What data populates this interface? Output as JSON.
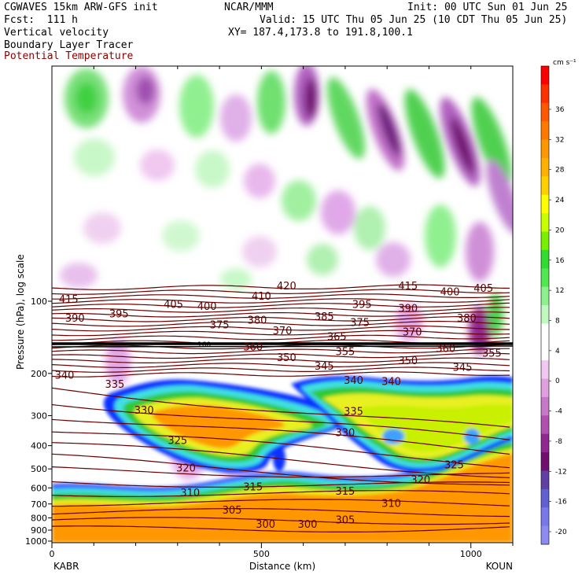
{
  "header": {
    "line1_left": "CGWAVES 15km ARW-GFS init",
    "line1_center": "NCAR/MMM",
    "line1_right": "Init: 00 UTC Sun 01 Jun 25",
    "line2_left": "Fcst:  111 h",
    "line2_right": "Valid: 15 UTC Thu 05 Jun 25 (10 CDT Thu 05 Jun 25)",
    "line3_left": "Vertical velocity",
    "line3_right": "XY= 187.4,173.8 to 191.8,100.1",
    "line4_left": "Boundary Layer Tracer",
    "line5_left": "Potential Temperature"
  },
  "chart_data": {
    "type": "heatmap",
    "title": "Vertical velocity",
    "overlays": [
      "Boundary Layer Tracer",
      "Potential Temperature"
    ],
    "xlabel": "Distance (km)",
    "ylabel": "Pressure (hPa), log scale",
    "x_ticks": [
      "0",
      "500",
      "1000"
    ],
    "x_range": [
      0,
      1100
    ],
    "x_endpoints": {
      "left": "KABR",
      "right": "KOUN"
    },
    "y_ticks": [
      "100",
      "200",
      "300",
      "400",
      "500",
      "600",
      "700",
      "800",
      "900",
      "1000"
    ],
    "y_scale": "log",
    "colorbar": {
      "unit": "cm s⁻¹",
      "labels": [
        "36",
        "32",
        "28",
        "24",
        "20",
        "16",
        "12",
        "8",
        "4",
        "0",
        "-4",
        "-8",
        "-12",
        "-16",
        "-20"
      ],
      "colors": [
        "#ff0000",
        "#ff3000",
        "#ff5800",
        "#ff7800",
        "#ff9800",
        "#ffb000",
        "#ffd000",
        "#ffff00",
        "#c8ff00",
        "#78f000",
        "#30dc30",
        "#50e850",
        "#8cf08c",
        "#c0f8c0",
        "#ffffff",
        "#ffffff",
        "#f0c8f0",
        "#e0a0e0",
        "#c878c8",
        "#b050b0",
        "#902890",
        "#701070",
        "#6040a0",
        "#6060d0",
        "#7878e8",
        "#8c8cf0"
      ]
    },
    "theta_labels": [
      {
        "value": "415",
        "x": 40,
        "p": 100
      },
      {
        "value": "390",
        "x": 55,
        "p": 120
      },
      {
        "value": "395",
        "x": 160,
        "p": 115
      },
      {
        "value": "405",
        "x": 290,
        "p": 105
      },
      {
        "value": "400",
        "x": 370,
        "p": 107
      },
      {
        "value": "375",
        "x": 400,
        "p": 128
      },
      {
        "value": "380",
        "x": 490,
        "p": 122
      },
      {
        "value": "410",
        "x": 500,
        "p": 97
      },
      {
        "value": "420",
        "x": 560,
        "p": 88
      },
      {
        "value": "370",
        "x": 550,
        "p": 135
      },
      {
        "value": "385",
        "x": 650,
        "p": 118
      },
      {
        "value": "395",
        "x": 740,
        "p": 105
      },
      {
        "value": "375",
        "x": 735,
        "p": 125
      },
      {
        "value": "365",
        "x": 680,
        "p": 143
      },
      {
        "value": "360",
        "x": 480,
        "p": 158
      },
      {
        "value": "355",
        "x": 700,
        "p": 165
      },
      {
        "value": "350",
        "x": 560,
        "p": 175
      },
      {
        "value": "345",
        "x": 650,
        "p": 190
      },
      {
        "value": "350",
        "x": 850,
        "p": 180
      },
      {
        "value": "415",
        "x": 850,
        "p": 88
      },
      {
        "value": "390",
        "x": 850,
        "p": 109
      },
      {
        "value": "370",
        "x": 860,
        "p": 137
      },
      {
        "value": "400",
        "x": 950,
        "p": 93
      },
      {
        "value": "405",
        "x": 1030,
        "p": 90
      },
      {
        "value": "380",
        "x": 990,
        "p": 120
      },
      {
        "value": "360",
        "x": 940,
        "p": 160
      },
      {
        "value": "355",
        "x": 1050,
        "p": 168
      },
      {
        "value": "345",
        "x": 980,
        "p": 192
      },
      {
        "value": "340",
        "x": 30,
        "p": 207
      },
      {
        "value": "340",
        "x": 720,
        "p": 218
      },
      {
        "value": "340",
        "x": 810,
        "p": 220
      },
      {
        "value": "335",
        "x": 150,
        "p": 226
      },
      {
        "value": "335",
        "x": 720,
        "p": 293
      },
      {
        "value": "330",
        "x": 220,
        "p": 290
      },
      {
        "value": "330",
        "x": 700,
        "p": 360
      },
      {
        "value": "325",
        "x": 300,
        "p": 388
      },
      {
        "value": "325",
        "x": 960,
        "p": 490
      },
      {
        "value": "320",
        "x": 320,
        "p": 505
      },
      {
        "value": "320",
        "x": 880,
        "p": 565
      },
      {
        "value": "315",
        "x": 480,
        "p": 605
      },
      {
        "value": "315",
        "x": 700,
        "p": 630
      },
      {
        "value": "310",
        "x": 330,
        "p": 640
      },
      {
        "value": "310",
        "x": 810,
        "p": 710
      },
      {
        "value": "305",
        "x": 430,
        "p": 755
      },
      {
        "value": "305",
        "x": 700,
        "p": 830
      },
      {
        "value": "300",
        "x": 510,
        "p": 865
      },
      {
        "value": "300",
        "x": 610,
        "p": 865
      }
    ],
    "tropopause_label": "160"
  }
}
